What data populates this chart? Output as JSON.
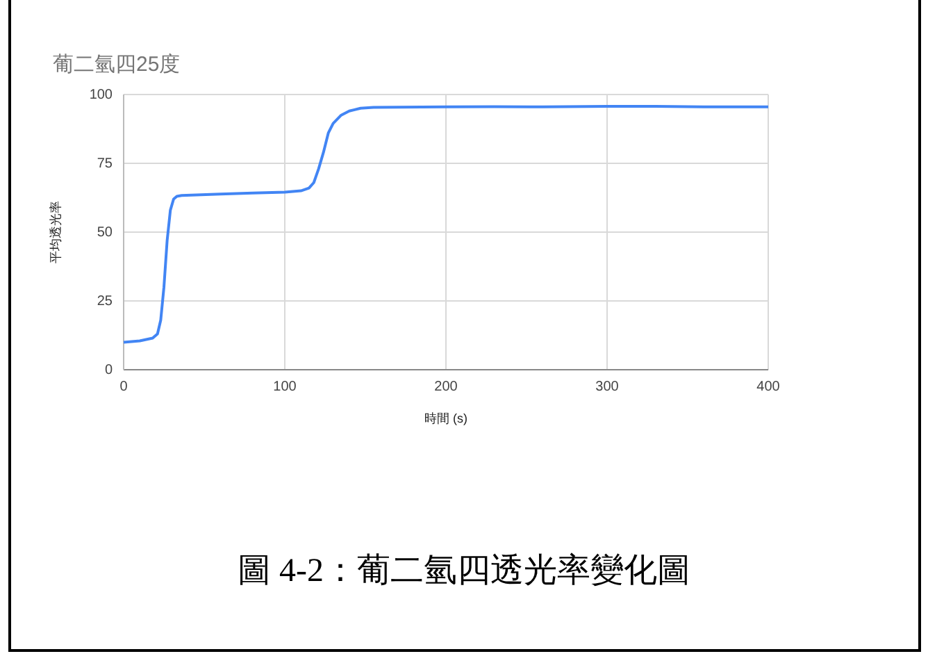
{
  "chart_data": {
    "type": "line",
    "title": "葡二氫四25度",
    "xlabel": "時間 (s)",
    "ylabel": "平均透光率",
    "annotations": [
      "圖 4-2：葡二氫四透光率變化圖"
    ],
    "x": [
      0,
      10,
      18,
      21,
      23,
      25,
      27,
      29,
      31,
      33,
      36,
      45,
      60,
      80,
      100,
      110,
      115,
      118,
      121,
      124,
      127,
      130,
      135,
      140,
      147,
      155,
      170,
      200,
      230,
      260,
      300,
      330,
      360,
      400
    ],
    "series": [
      {
        "color": "#4285f4",
        "values": [
          10,
          10.5,
          11.5,
          13,
          18,
          30,
          47,
          58,
          62,
          63,
          63.3,
          63.5,
          63.8,
          64.2,
          64.5,
          65,
          66,
          68,
          73,
          79,
          86,
          89.5,
          92.5,
          94,
          95,
          95.3,
          95.4,
          95.5,
          95.6,
          95.5,
          95.7,
          95.7,
          95.5,
          95.5
        ]
      }
    ],
    "xlim": [
      0,
      400
    ],
    "xticks": [
      0,
      100,
      200,
      300,
      400
    ],
    "ylim": [
      0,
      100
    ],
    "yticks": [
      0,
      25,
      50,
      75,
      100
    ],
    "grid": true,
    "marker": "none",
    "line_style": "solid"
  }
}
